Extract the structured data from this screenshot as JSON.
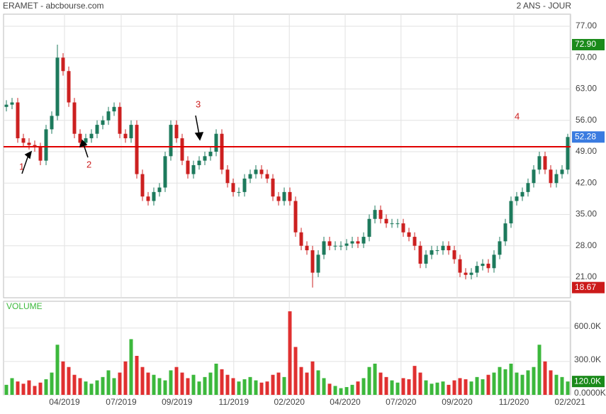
{
  "chart_data": {
    "type": "candlestick",
    "title": "ERAMET - abcbourse.com",
    "subtitle": "2 ANS - JOUR",
    "volume_label": "VOLUME",
    "annotations": [
      "1",
      "2",
      "3",
      "4"
    ],
    "hline": {
      "value": 50.1,
      "color": "#e00000"
    },
    "open": [
      59,
      59.5,
      60,
      52,
      51,
      50.5,
      50,
      47,
      54,
      57,
      70,
      67,
      60,
      53,
      51,
      52,
      53,
      55,
      56,
      58,
      59,
      53,
      52,
      55,
      44,
      39,
      38,
      40,
      41,
      48,
      55,
      52,
      47,
      44,
      46,
      47,
      48,
      49,
      53,
      45,
      42,
      40,
      40,
      43,
      44,
      45,
      44,
      43,
      39,
      38,
      40,
      38,
      31,
      28,
      27,
      22,
      26,
      29,
      28,
      28,
      28,
      28.5,
      29,
      28.5,
      30,
      34,
      36,
      34,
      33,
      33,
      33,
      31,
      30,
      28,
      24,
      26,
      27,
      27,
      28,
      27,
      25,
      22,
      21.5,
      22,
      23.5,
      24,
      23,
      26,
      29,
      33,
      38,
      39,
      40,
      42,
      45,
      48,
      45,
      42,
      44,
      45
    ],
    "high": [
      60.5,
      61,
      61,
      53,
      52,
      51.5,
      51,
      55,
      58,
      72.9,
      71,
      68,
      61,
      54,
      53,
      54,
      56,
      57,
      59,
      60,
      60,
      54,
      56,
      56,
      45,
      40,
      41,
      42,
      49,
      56,
      56,
      53,
      48,
      47,
      48,
      49,
      50,
      54,
      54,
      46,
      43,
      41,
      44,
      45,
      46,
      46,
      45,
      44,
      40,
      41,
      41,
      39,
      32,
      29,
      28,
      27,
      30,
      30,
      29,
      29,
      29.5,
      30,
      30,
      31,
      35,
      37,
      37,
      35,
      34,
      34,
      34,
      32,
      31,
      29,
      27,
      28,
      28,
      29,
      29,
      28,
      26,
      23,
      23,
      24.5,
      25,
      25,
      27,
      30,
      34,
      39,
      40,
      41,
      43,
      46,
      49,
      49,
      46,
      45,
      46,
      53
    ],
    "low": [
      58,
      58.5,
      51,
      50,
      49.5,
      49,
      46,
      46,
      53,
      56,
      66,
      59,
      52,
      50,
      50,
      51,
      52,
      54,
      55,
      57,
      52,
      51,
      51,
      43,
      38,
      37,
      37,
      39,
      40,
      47,
      51,
      46,
      43,
      43,
      45,
      46,
      47,
      48,
      44,
      41,
      39,
      39,
      39,
      42,
      43,
      43,
      42,
      38,
      37,
      37,
      37,
      30,
      27,
      26,
      18.67,
      21,
      25,
      27,
      27,
      27,
      27,
      27.5,
      27.5,
      27.5,
      29,
      33,
      33,
      32,
      32,
      32,
      30,
      29,
      27,
      23,
      23,
      25,
      26,
      26,
      26,
      24,
      21,
      20.5,
      20.5,
      21,
      22.5,
      22,
      22,
      25,
      28,
      32,
      37,
      38,
      39,
      41,
      44,
      44,
      41,
      41,
      43,
      44
    ],
    "close": [
      59.5,
      60,
      52,
      51,
      50.5,
      50,
      47,
      54,
      57,
      70,
      67,
      60,
      53,
      51,
      52,
      53,
      55,
      56,
      58,
      59,
      53,
      52,
      55,
      44,
      39,
      38,
      40,
      41,
      48,
      55,
      52,
      47,
      44,
      46,
      47,
      48,
      49,
      53,
      45,
      42,
      40,
      40,
      43,
      44,
      45,
      44,
      43,
      39,
      38,
      40,
      38,
      31,
      28,
      27,
      22,
      26,
      29,
      28,
      28,
      28,
      28.5,
      29,
      28.5,
      30,
      34,
      36,
      34,
      33,
      33,
      33,
      31,
      30,
      28,
      24,
      26,
      27,
      27,
      28,
      27,
      25,
      22,
      21.5,
      22,
      23.5,
      24,
      23,
      26,
      29,
      33,
      38,
      39,
      40,
      42,
      45,
      48,
      45,
      42,
      44,
      45,
      52.28
    ],
    "volume": [
      90000,
      150000,
      120000,
      100000,
      130000,
      80000,
      110000,
      140000,
      200000,
      450000,
      300000,
      250000,
      180000,
      150000,
      120000,
      100000,
      130000,
      160000,
      220000,
      150000,
      200000,
      300000,
      500000,
      350000,
      250000,
      200000,
      180000,
      150000,
      130000,
      220000,
      250000,
      200000,
      150000,
      180000,
      120000,
      160000,
      200000,
      280000,
      230000,
      180000,
      150000,
      120000,
      140000,
      160000,
      130000,
      110000,
      120000,
      180000,
      200000,
      160000,
      750000,
      430000,
      250000,
      200000,
      300000,
      220000,
      150000,
      100000,
      80000,
      60000,
      70000,
      90000,
      120000,
      150000,
      250000,
      280000,
      200000,
      160000,
      130000,
      110000,
      150000,
      140000,
      260000,
      200000,
      130000,
      100000,
      110000,
      120000,
      90000,
      130000,
      150000,
      140000,
      120000,
      160000,
      140000,
      180000,
      200000,
      250000,
      230000,
      280000,
      200000,
      180000,
      220000,
      250000,
      450000,
      300000,
      220000,
      180000,
      160000,
      120000
    ],
    "up_color": "#1d7a5c",
    "down_color": "#cc2020",
    "volume_up_color": "#3cb83c",
    "volume_down_color": "#e03030",
    "ylim": [
      16.4,
      79.7
    ],
    "yticks": [
      {
        "value": 77,
        "label": "77.00"
      },
      {
        "value": 70,
        "label": "70.00"
      },
      {
        "value": 63,
        "label": "63.00"
      },
      {
        "value": 56,
        "label": "56.00"
      },
      {
        "value": 49,
        "label": "49.00"
      },
      {
        "value": 42,
        "label": "42.00"
      },
      {
        "value": 35,
        "label": "35.00"
      },
      {
        "value": 28,
        "label": "28.00"
      },
      {
        "value": 21,
        "label": "21.00"
      }
    ],
    "volume_ylim": [
      0,
      840000
    ],
    "volume_ticks": [
      {
        "value": 600000,
        "label": "600.0K"
      },
      {
        "value": 300000,
        "label": "300.0K"
      },
      {
        "value": 0,
        "label": "0.0000K"
      }
    ],
    "price_tags": [
      {
        "value": 72.9,
        "label": "72.90",
        "color": "#1a8a1a"
      },
      {
        "value": 52.28,
        "label": "52.28",
        "color": "#3a7be0"
      },
      {
        "value": 18.67,
        "label": "18.67",
        "color": "#cc1a1a"
      }
    ],
    "volume_tag": {
      "value": 120000,
      "label": "120.0K",
      "color": "#1a8a1a"
    },
    "xticks": [
      {
        "value": 10.25,
        "label": "04/2019"
      },
      {
        "value": 20.25,
        "label": "07/2019"
      },
      {
        "value": 30.1,
        "label": "09/2019"
      },
      {
        "value": 40.1,
        "label": "11/2019"
      },
      {
        "value": 49.9,
        "label": "02/2020"
      },
      {
        "value": 59.75,
        "label": "04/2020"
      },
      {
        "value": 69.6,
        "label": "07/2020"
      },
      {
        "value": 79.5,
        "label": "09/2020"
      },
      {
        "value": 89.5,
        "label": "11/2020"
      },
      {
        "value": 99.4,
        "label": "02/2021"
      }
    ],
    "grid": true
  }
}
